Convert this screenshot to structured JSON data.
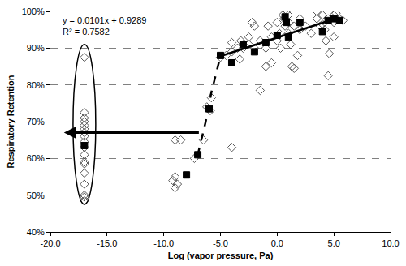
{
  "chart_data": {
    "type": "scatter",
    "x_label": "Log (vapor pressure, Pa)",
    "y_label": "Respiratory Retention",
    "annotations": [
      "y = 0.0101x + 0.9289",
      "R² = 0.7582"
    ],
    "xlim": [
      -20,
      10
    ],
    "xticks": [
      {
        "value": -20,
        "label": "-20.0"
      },
      {
        "value": -15,
        "label": "-15.0"
      },
      {
        "value": -10,
        "label": "-10.0"
      },
      {
        "value": -5,
        "label": "-5.0"
      },
      {
        "value": 0,
        "label": "0.0"
      },
      {
        "value": 5,
        "label": "5.0"
      },
      {
        "value": 10,
        "label": "10.0"
      }
    ],
    "ylim": [
      40,
      100
    ],
    "yticks": [
      {
        "value": 40,
        "label": "40%"
      },
      {
        "value": 50,
        "label": "50%"
      },
      {
        "value": 60,
        "label": "60%"
      },
      {
        "value": 70,
        "label": "70%"
      },
      {
        "value": 80,
        "label": "80%"
      },
      {
        "value": 90,
        "label": "90%"
      },
      {
        "value": 100,
        "label": "100%"
      }
    ],
    "grid": "y",
    "series": [
      {
        "type": "scatter",
        "marker": "diamond-open",
        "color": "#555555",
        "x": [
          -17,
          -17,
          -17,
          -17,
          -17,
          -17,
          -17,
          -17,
          -17,
          -17,
          -17,
          -17,
          -17,
          -17,
          -17,
          -17,
          -17,
          -17,
          -9,
          -8.5,
          -9,
          -9.2,
          -9,
          -8.8,
          -6.5,
          -7.3,
          -4,
          -5.8,
          -6.2,
          -5.9,
          -5,
          -4.5,
          -4,
          -3.5,
          -3.3,
          -3,
          -3.2,
          -2.5,
          -2,
          -2.2,
          -1.5,
          -1.5,
          -1,
          -1,
          -0.5,
          -0.8,
          0,
          0,
          0.2,
          0.5,
          0.6,
          0.8,
          0.7,
          1,
          1,
          1,
          1.2,
          1.3,
          1.5,
          1.5,
          1.8,
          2,
          2,
          2.5,
          3.5,
          3.8,
          4,
          4,
          4.2,
          4.3,
          4.5,
          4.5,
          5,
          5,
          5.2,
          5.5,
          5.8,
          4.6,
          5,
          -2.5,
          -3,
          -4,
          -2,
          -0.5,
          0.3,
          3,
          3.5
        ],
        "values": [
          87.5,
          72.5,
          71,
          70,
          69,
          68,
          67,
          66,
          64.5,
          63,
          61,
          59,
          58.5,
          56,
          53,
          50,
          49.5,
          48.5,
          65,
          65,
          55,
          54,
          52,
          53,
          65,
          60,
          63,
          76.5,
          74,
          73,
          87.5,
          88,
          89,
          90,
          87,
          91,
          92,
          93,
          96,
          97,
          92,
          78.5,
          85,
          90,
          86,
          96,
          97,
          92,
          94,
          99,
          98,
          100,
          96,
          99,
          97,
          94,
          91,
          85,
          84.5,
          96,
          88,
          95,
          98,
          96,
          98,
          96,
          99,
          96.5,
          95,
          92,
          98,
          82.5,
          99,
          97,
          99.5,
          98,
          97.5,
          88.5,
          93,
          91,
          90,
          91.5,
          90,
          93,
          90,
          94,
          100
        ]
      },
      {
        "type": "scatter",
        "marker": "square",
        "color": "#000000",
        "x": [
          -17,
          -8,
          -7,
          -6,
          -5,
          -4,
          -3,
          -2,
          -1,
          0,
          0.7,
          0.8,
          1,
          2,
          4,
          4.5,
          5,
          5.5
        ],
        "values": [
          63.5,
          55.5,
          61,
          73.5,
          88,
          86,
          91,
          89,
          91.5,
          93.5,
          98.5,
          97,
          93,
          97,
          94.5,
          97.5,
          98,
          97.5
        ]
      },
      {
        "type": "line",
        "line_style": "solid",
        "color": "#000000",
        "x": [
          -5,
          5.5
        ],
        "values": [
          87.8,
          98.4
        ]
      },
      {
        "type": "line",
        "line_style": "dash",
        "color": "#000000",
        "x": [
          -7,
          -6.3,
          -5.8,
          -5.3,
          -5
        ],
        "values": [
          61,
          70,
          78,
          84,
          87.8
        ]
      },
      {
        "type": "arrow",
        "color": "#000000",
        "x": [
          -6.8,
          -18.8
        ],
        "values": [
          67,
          67
        ]
      },
      {
        "type": "ellipse",
        "color": "#000000",
        "x": [
          -18,
          -16
        ],
        "values": [
          47.5,
          91
        ]
      }
    ]
  }
}
